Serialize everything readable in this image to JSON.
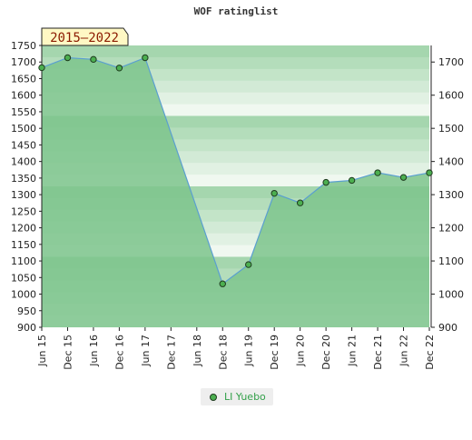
{
  "title": "WOF ratinglist",
  "period_badge": "2015–2022",
  "chart_data": {
    "type": "area",
    "title": "WOF ratinglist",
    "categories": [
      "Jun 15",
      "Dec 15",
      "Jun 16",
      "Dec 16",
      "Jun 17",
      "Dec 17",
      "Jun 18",
      "Dec 18",
      "Jun 19",
      "Dec 19",
      "Jun 20",
      "Dec 20",
      "Jun 21",
      "Dec 21",
      "Jun 22",
      "Dec 22"
    ],
    "series": [
      {
        "name": "LI Yuebo",
        "values": [
          1683,
          1713,
          1708,
          1682,
          1713,
          null,
          null,
          1031,
          1089,
          1304,
          1275,
          1337,
          1343,
          1366,
          1352,
          1366
        ]
      }
    ],
    "ylim_left": [
      900,
      1750
    ],
    "yticks_left": [
      900,
      950,
      1000,
      1050,
      1100,
      1150,
      1200,
      1250,
      1300,
      1350,
      1400,
      1450,
      1500,
      1550,
      1600,
      1650,
      1700,
      1750
    ],
    "yticks_right": [
      900,
      1000,
      1100,
      1200,
      1300,
      1400,
      1500,
      1600,
      1700
    ],
    "legend_position": "bottom"
  },
  "colors": {
    "area": "#7cc48c",
    "line": "#5a9fd0",
    "marker_fill": "#4caf50",
    "marker_stroke": "#1e3a1e",
    "band_dark": "#a5d6ae",
    "band_light": "#f0f8f0",
    "badge_bg": "#fff8c4",
    "legend_text": "#33a04a"
  }
}
